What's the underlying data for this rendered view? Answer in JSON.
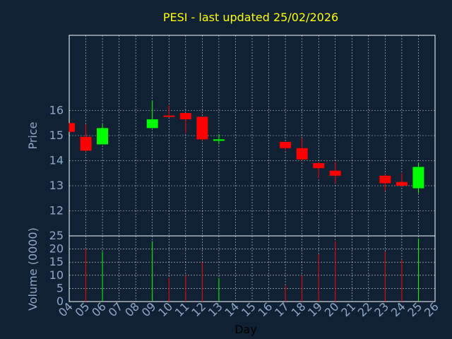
{
  "chart_data": {
    "type": "candlestick",
    "title": "PESI - last updated 25/02/2026",
    "xlabel": "Day",
    "x_ticks": [
      "04",
      "05",
      "06",
      "07",
      "08",
      "09",
      "10",
      "11",
      "12",
      "13",
      "14",
      "15",
      "16",
      "17",
      "18",
      "19",
      "20",
      "21",
      "22",
      "23",
      "24",
      "25",
      "26"
    ],
    "price_panel": {
      "ylabel": "Price",
      "ylim": [
        11.0,
        19.0
      ],
      "y_ticks": [
        12,
        13,
        14,
        15,
        16
      ],
      "grid": true
    },
    "volume_panel": {
      "ylabel": "Volume (0000)",
      "ylim": [
        0,
        25
      ],
      "y_ticks": [
        0,
        5,
        10,
        15,
        20,
        25
      ],
      "grid": true
    },
    "candles": [
      {
        "day": "04",
        "open": 15.5,
        "high": 15.5,
        "low": 15.15,
        "close": 15.15,
        "volume": 0
      },
      {
        "day": "05",
        "open": 14.95,
        "high": 15.45,
        "low": 14.35,
        "close": 14.4,
        "volume": 20
      },
      {
        "day": "06",
        "open": 14.65,
        "high": 15.45,
        "low": 14.65,
        "close": 15.3,
        "volume": 19
      },
      {
        "day": "09",
        "open": 15.3,
        "high": 16.4,
        "low": 15.3,
        "close": 15.65,
        "volume": 23
      },
      {
        "day": "10",
        "open": 15.8,
        "high": 16.2,
        "low": 15.75,
        "close": 15.75,
        "volume": 9
      },
      {
        "day": "11",
        "open": 15.9,
        "high": 15.9,
        "low": 15.1,
        "close": 15.65,
        "volume": 10
      },
      {
        "day": "12",
        "open": 15.75,
        "high": 15.75,
        "low": 14.8,
        "close": 14.85,
        "volume": 15
      },
      {
        "day": "13",
        "open": 14.8,
        "high": 15.05,
        "low": 14.65,
        "close": 14.85,
        "volume": 9
      },
      {
        "day": "17",
        "open": 14.75,
        "high": 14.75,
        "low": 14.4,
        "close": 14.5,
        "volume": 6
      },
      {
        "day": "18",
        "open": 14.5,
        "high": 14.9,
        "low": 14.0,
        "close": 14.05,
        "volume": 10
      },
      {
        "day": "19",
        "open": 13.9,
        "high": 13.95,
        "low": 13.3,
        "close": 13.7,
        "volume": 18
      },
      {
        "day": "20",
        "open": 13.6,
        "high": 13.95,
        "low": 13.1,
        "close": 13.4,
        "volume": 23
      },
      {
        "day": "23",
        "open": 13.4,
        "high": 13.45,
        "low": 12.8,
        "close": 13.1,
        "volume": 19
      },
      {
        "day": "24",
        "open": 13.15,
        "high": 13.5,
        "low": 12.95,
        "close": 13.0,
        "volume": 16
      },
      {
        "day": "25",
        "open": 12.9,
        "high": 13.9,
        "low": 12.7,
        "close": 13.75,
        "volume": 24
      }
    ],
    "colors": {
      "up": "#00ff00",
      "down": "#ff0000",
      "background": "#0f2133",
      "title": "#ffff00",
      "axis_text": "#8fa8c8",
      "frame": "#ffffff",
      "grid": "#ffffff"
    }
  }
}
